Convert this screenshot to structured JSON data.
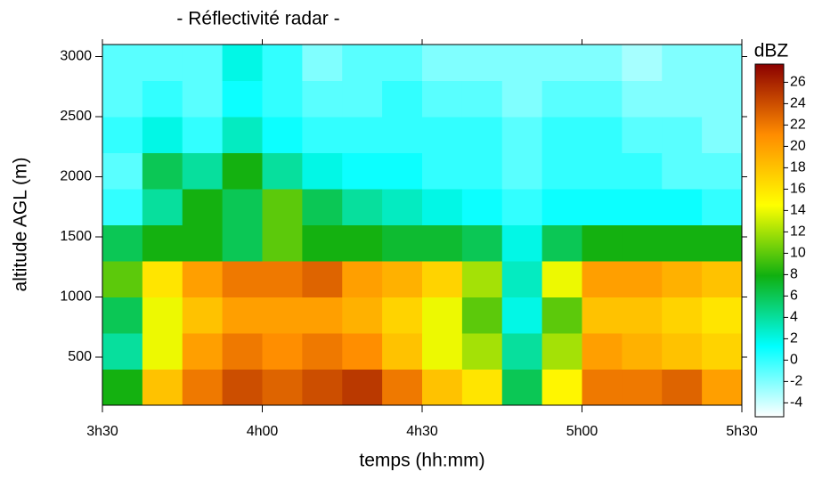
{
  "chart_data": {
    "type": "heatmap",
    "title": "- Réflectivité radar -",
    "x_label": "temps (hh:mm)",
    "y_label": "altitude AGL (m)",
    "colorbar_label": "dBZ",
    "xbins": [
      3.5,
      3.625,
      3.75,
      3.875,
      4,
      4.125,
      4.25,
      4.375,
      4.5,
      4.625,
      4.75,
      4.875,
      5,
      5.125,
      5.25,
      5.375,
      5.5
    ],
    "ybins": [
      100,
      400,
      700,
      1000,
      1300,
      1600,
      1900,
      2200,
      2500,
      2800,
      3100
    ],
    "z": [
      [
        8,
        18,
        22,
        24,
        23,
        24,
        25,
        22,
        18,
        16,
        6,
        15,
        22,
        22,
        23,
        20
      ],
      [
        4,
        14,
        20,
        22,
        21,
        22,
        21,
        18,
        14,
        12,
        4,
        12,
        20,
        19,
        18,
        17
      ],
      [
        6,
        14,
        18,
        20,
        20,
        20,
        19,
        17,
        14,
        10,
        2,
        10,
        18,
        18,
        17,
        16
      ],
      [
        10,
        16,
        20,
        22,
        22,
        23,
        20,
        19,
        17,
        12,
        3,
        14,
        20,
        20,
        19,
        18
      ],
      [
        6,
        8,
        8,
        6,
        10,
        8,
        8,
        7,
        7,
        6,
        2,
        6,
        8,
        8,
        8,
        8
      ],
      [
        0,
        4,
        8,
        6,
        10,
        6,
        4,
        3,
        2,
        1,
        0,
        1,
        1,
        1,
        1,
        0
      ],
      [
        -1,
        6,
        4,
        8,
        4,
        2,
        1,
        1,
        0,
        0,
        -1,
        0,
        0,
        0,
        -1,
        -1
      ],
      [
        0,
        2,
        0,
        3,
        1,
        0,
        0,
        0,
        0,
        0,
        -1,
        0,
        0,
        -1,
        -1,
        -2
      ],
      [
        -1,
        0,
        -1,
        1,
        0,
        -1,
        -1,
        0,
        -1,
        -1,
        -2,
        -1,
        -1,
        -2,
        -2,
        -2
      ],
      [
        -1,
        -1,
        -1,
        2,
        0,
        -2,
        -1,
        -1,
        -2,
        -2,
        -2,
        -2,
        -2,
        -3,
        -2,
        -2
      ]
    ],
    "xlim": [
      3.5,
      5.5
    ],
    "xticks": [
      {
        "value": 3.5,
        "label": "3h30"
      },
      {
        "value": 4,
        "label": "4h00"
      },
      {
        "value": 4.5,
        "label": "4h30"
      },
      {
        "value": 5,
        "label": "5h00"
      },
      {
        "value": 5.5,
        "label": "5h30"
      }
    ],
    "ylim": [
      100,
      3100
    ],
    "yticks": [
      500,
      1000,
      1500,
      2000,
      2500,
      3000
    ],
    "zlim": [
      -5.3,
      27.7
    ],
    "zticks": [
      -4,
      -2,
      0,
      2,
      4,
      6,
      8,
      10,
      12,
      14,
      16,
      18,
      20,
      22,
      24,
      26
    ],
    "colormap": [
      "#ffffff",
      "#00ffff",
      "#10b010",
      "#ffff00",
      "#ff8c00",
      "#8b0000"
    ]
  }
}
